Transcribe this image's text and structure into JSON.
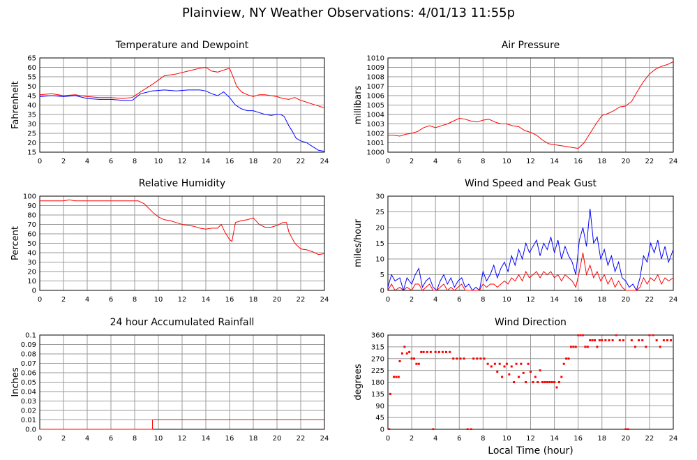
{
  "title": "Plainview, NY Weather Observations: 4/01/13 11:55p",
  "x_axis_label": "Local Time (hour)",
  "colors": {
    "red": "#ff0000",
    "blue": "#0000ff",
    "grid": "#9a9a9a"
  },
  "chart_data": [
    {
      "type": "line",
      "title": "Temperature and Dewpoint",
      "ylabel": "Fahrenheit",
      "xlim": [
        0,
        24
      ],
      "ylim": [
        15,
        65
      ],
      "x_ticks": [
        "0",
        "2",
        "4",
        "6",
        "8",
        "10",
        "12",
        "14",
        "16",
        "18",
        "20",
        "22",
        "24"
      ],
      "y_ticks": [
        "15",
        "20",
        "25",
        "30",
        "35",
        "40",
        "45",
        "50",
        "55",
        "60",
        "65"
      ],
      "grid": true,
      "series": [
        {
          "color": "#ff0000",
          "x": [
            0,
            1,
            2,
            3,
            4,
            5,
            6,
            7,
            7.8,
            8.5,
            9.5,
            10.5,
            11.5,
            12.5,
            13.5,
            14,
            14.5,
            15,
            15.5,
            16,
            16.3,
            16.6,
            17,
            17.5,
            18,
            18.5,
            19,
            19.5,
            20,
            20.5,
            21,
            21.5,
            22,
            22.5,
            23,
            23.5,
            24
          ],
          "y": [
            45.5,
            46,
            45,
            45.5,
            44.5,
            44,
            44,
            43.5,
            44,
            47,
            51,
            55.5,
            56.5,
            58,
            59.5,
            60,
            58,
            57.5,
            58.5,
            59.5,
            55,
            50,
            47,
            45.5,
            44.5,
            45.5,
            45.5,
            45,
            44.5,
            43.5,
            43,
            44,
            42.5,
            41.5,
            40.5,
            39.5,
            38.5
          ]
        },
        {
          "color": "#0000ff",
          "x": [
            0,
            1,
            2,
            3,
            4,
            5,
            6,
            7,
            7.8,
            8.5,
            9.5,
            10.5,
            11.5,
            12.5,
            13.5,
            14,
            14.5,
            15,
            15.5,
            16,
            16.5,
            17,
            17.5,
            18,
            18.5,
            19,
            19.5,
            20,
            20.3,
            20.6,
            21,
            21.3,
            21.6,
            22,
            22.5,
            23,
            23.5,
            24
          ],
          "y": [
            44.5,
            45,
            44.5,
            45,
            43.5,
            43,
            43,
            42.5,
            42.5,
            46,
            47.5,
            48,
            47.5,
            48,
            48,
            47.5,
            46,
            45,
            47,
            44,
            40,
            38,
            37,
            37,
            36,
            35,
            34.5,
            35,
            35,
            34,
            29,
            26,
            22.5,
            21,
            20,
            18,
            16,
            15.5
          ]
        }
      ]
    },
    {
      "type": "line",
      "title": "Air Pressure",
      "ylabel": "millibars",
      "xlim": [
        0,
        24
      ],
      "ylim": [
        1000,
        1010
      ],
      "x_ticks": [
        "0",
        "2",
        "4",
        "6",
        "8",
        "10",
        "12",
        "14",
        "16",
        "18",
        "20",
        "22",
        "24"
      ],
      "y_ticks": [
        "1000",
        "1001",
        "1002",
        "1003",
        "1004",
        "1005",
        "1006",
        "1007",
        "1008",
        "1009",
        "1010"
      ],
      "grid": true,
      "series": [
        {
          "color": "#ff0000",
          "x": [
            0,
            0.5,
            1,
            1.5,
            2,
            2.5,
            3,
            3.5,
            4,
            4.5,
            5,
            5.5,
            6,
            6.5,
            7,
            7.5,
            8,
            8.5,
            9,
            9.5,
            10,
            10.5,
            11,
            11.5,
            12,
            12.5,
            13,
            13.5,
            14,
            14.5,
            15,
            15.5,
            16,
            16.5,
            17,
            17.5,
            18,
            18.5,
            19,
            19.5,
            20,
            20.5,
            21,
            21.5,
            22,
            22.5,
            23,
            23.5,
            24
          ],
          "y": [
            1001.8,
            1001.8,
            1001.7,
            1001.9,
            1002.0,
            1002.2,
            1002.6,
            1002.8,
            1002.6,
            1002.8,
            1003.0,
            1003.3,
            1003.6,
            1003.5,
            1003.3,
            1003.2,
            1003.4,
            1003.5,
            1003.2,
            1003.0,
            1003.0,
            1002.8,
            1002.7,
            1002.3,
            1002.1,
            1001.8,
            1001.3,
            1000.9,
            1000.8,
            1000.7,
            1000.6,
            1000.5,
            1000.4,
            1001.0,
            1002.0,
            1003.0,
            1003.9,
            1004.1,
            1004.4,
            1004.8,
            1004.9,
            1005.4,
            1006.5,
            1007.5,
            1008.3,
            1008.8,
            1009.1,
            1009.3,
            1009.6
          ]
        }
      ]
    },
    {
      "type": "line",
      "title": "Relative Humidity",
      "ylabel": "Percent",
      "xlim": [
        0,
        24
      ],
      "ylim": [
        0,
        100
      ],
      "x_ticks": [
        "0",
        "2",
        "4",
        "6",
        "8",
        "10",
        "12",
        "14",
        "16",
        "18",
        "20",
        "22",
        "24"
      ],
      "y_ticks": [
        "0",
        "10",
        "20",
        "30",
        "40",
        "50",
        "60",
        "70",
        "80",
        "90",
        "100"
      ],
      "grid": true,
      "series": [
        {
          "color": "#ff0000",
          "x": [
            0,
            1,
            2,
            2.5,
            3,
            4,
            5,
            6,
            7,
            7.8,
            8.3,
            8.8,
            9.2,
            9.6,
            10,
            10.5,
            11,
            11.5,
            12,
            12.5,
            13,
            13.5,
            14,
            14.5,
            15,
            15.3,
            15.6,
            16,
            16.2,
            16.5,
            17,
            17.5,
            18,
            18.5,
            19,
            19.5,
            20,
            20.5,
            20.8,
            21,
            21.5,
            22,
            22.5,
            23,
            23.5,
            24
          ],
          "y": [
            95,
            95,
            95,
            96,
            95,
            95,
            95,
            95,
            95,
            95,
            95,
            92,
            87,
            82,
            78,
            75,
            74,
            72,
            70,
            69,
            68,
            66,
            65,
            66,
            66,
            70,
            62,
            54,
            52,
            72,
            74,
            75,
            77,
            70,
            67,
            67,
            69,
            72,
            72,
            62,
            50,
            44,
            43,
            41,
            38,
            39
          ]
        }
      ]
    },
    {
      "type": "line",
      "title": "Wind Speed and Peak Gust",
      "ylabel": "miles/hour",
      "xlim": [
        0,
        24
      ],
      "ylim": [
        0,
        30
      ],
      "x_ticks": [
        "0",
        "2",
        "4",
        "6",
        "8",
        "10",
        "12",
        "14",
        "16",
        "18",
        "20",
        "22",
        "24"
      ],
      "y_ticks": [
        "0",
        "5",
        "10",
        "15",
        "20",
        "25",
        "30"
      ],
      "grid": true,
      "series": [
        {
          "color": "#0000ff",
          "x": [
            0,
            0.3,
            0.6,
            1,
            1.3,
            1.6,
            2,
            2.3,
            2.6,
            2.9,
            3.2,
            3.5,
            3.8,
            4.1,
            4.4,
            4.7,
            5,
            5.3,
            5.6,
            5.9,
            6.2,
            6.5,
            6.8,
            7.1,
            7.4,
            7.7,
            8,
            8.3,
            8.6,
            8.9,
            9.2,
            9.5,
            9.8,
            10.1,
            10.4,
            10.7,
            11,
            11.3,
            11.6,
            11.9,
            12.2,
            12.5,
            12.8,
            13.1,
            13.4,
            13.7,
            14,
            14.3,
            14.6,
            14.9,
            15.2,
            15.5,
            15.8,
            16.1,
            16.4,
            16.7,
            17,
            17.3,
            17.6,
            17.9,
            18.2,
            18.5,
            18.8,
            19.1,
            19.4,
            19.7,
            20,
            20.3,
            20.6,
            20.9,
            21.2,
            21.5,
            21.8,
            22.1,
            22.4,
            22.7,
            23,
            23.3,
            23.6,
            24
          ],
          "y": [
            1,
            5,
            3,
            4,
            0,
            4,
            2,
            5,
            7,
            1,
            3,
            4,
            1,
            0,
            3,
            5,
            2,
            4,
            1,
            3,
            4,
            1,
            2,
            0,
            1,
            0,
            6,
            3,
            5,
            8,
            4,
            7,
            9,
            6,
            11,
            8,
            13,
            10,
            15,
            12,
            14,
            16,
            11,
            15,
            13,
            17,
            12,
            16,
            10,
            14,
            11,
            9,
            5,
            16,
            20,
            14,
            26,
            15,
            17,
            10,
            13,
            8,
            11,
            6,
            9,
            4,
            3,
            1,
            2,
            0,
            4,
            11,
            9,
            15,
            12,
            16,
            10,
            14,
            9,
            13
          ]
        },
        {
          "color": "#ff0000",
          "x": [
            0,
            0.3,
            0.6,
            1,
            1.3,
            1.6,
            2,
            2.3,
            2.6,
            2.9,
            3.2,
            3.5,
            3.8,
            4.1,
            4.4,
            4.7,
            5,
            5.3,
            5.6,
            5.9,
            6.2,
            6.5,
            6.8,
            7.1,
            7.4,
            7.7,
            8,
            8.3,
            8.6,
            8.9,
            9.2,
            9.5,
            9.8,
            10.1,
            10.4,
            10.7,
            11,
            11.3,
            11.6,
            11.9,
            12.2,
            12.5,
            12.8,
            13.1,
            13.4,
            13.7,
            14,
            14.3,
            14.6,
            14.9,
            15.2,
            15.5,
            15.8,
            16.1,
            16.4,
            16.7,
            17,
            17.3,
            17.6,
            17.9,
            18.2,
            18.5,
            18.8,
            19.1,
            19.4,
            19.7,
            20,
            20.3,
            20.6,
            20.9,
            21.2,
            21.5,
            21.8,
            22.1,
            22.4,
            22.7,
            23,
            23.3,
            23.6,
            24
          ],
          "y": [
            0,
            2,
            0,
            1,
            0,
            1,
            0,
            2,
            2,
            0,
            1,
            2,
            0,
            0,
            1,
            2,
            0,
            1,
            0,
            1,
            2,
            0,
            0,
            0,
            0,
            0,
            2,
            1,
            2,
            2,
            1,
            2,
            3,
            2,
            4,
            3,
            5,
            3,
            6,
            4,
            5,
            6,
            4,
            6,
            5,
            6,
            4,
            5,
            3,
            5,
            4,
            3,
            1,
            6,
            12,
            5,
            8,
            4,
            6,
            3,
            5,
            2,
            4,
            1,
            3,
            1,
            0,
            0,
            0,
            0,
            1,
            4,
            2,
            4,
            3,
            5,
            2,
            4,
            3,
            4
          ]
        }
      ]
    },
    {
      "type": "line",
      "title": "24 hour Accumulated Rainfall",
      "ylabel": "Inches",
      "xlim": [
        0,
        24
      ],
      "ylim": [
        0,
        0.1
      ],
      "x_ticks": [
        "0",
        "2",
        "4",
        "6",
        "8",
        "10",
        "12",
        "14",
        "16",
        "18",
        "20",
        "22",
        "24"
      ],
      "y_ticks": [
        "0.0",
        "0.01",
        "0.02",
        "0.03",
        "0.04",
        "0.05",
        "0.06",
        "0.07",
        "0.08",
        "0.09",
        "0.1"
      ],
      "grid": true,
      "series": [
        {
          "color": "#ff0000",
          "x": [
            0,
            9.5,
            9.5,
            24
          ],
          "y": [
            0,
            0,
            0.01,
            0.01
          ]
        }
      ]
    },
    {
      "type": "scatter",
      "title": "Wind Direction",
      "ylabel": "degrees",
      "xlim": [
        0,
        24
      ],
      "ylim": [
        0,
        360
      ],
      "x_ticks": [
        "0",
        "2",
        "4",
        "6",
        "8",
        "10",
        "12",
        "14",
        "16",
        "18",
        "20",
        "22",
        "24"
      ],
      "y_ticks": [
        "0",
        "45",
        "90",
        "135",
        "180",
        "225",
        "270",
        "315",
        "360"
      ],
      "grid": true,
      "series": [
        {
          "color": "#ff0000",
          "x": [
            0.1,
            0.2,
            0.5,
            0.7,
            0.9,
            1.0,
            1.2,
            1.4,
            1.6,
            1.8,
            2.0,
            2.2,
            2.4,
            2.6,
            2.8,
            3.0,
            3.3,
            3.6,
            3.8,
            4.0,
            4.3,
            4.6,
            4.9,
            5.2,
            5.5,
            5.8,
            6.1,
            6.4,
            6.7,
            7.0,
            7.2,
            7.5,
            7.8,
            8.1,
            8.4,
            8.7,
            9.0,
            9.2,
            9.4,
            9.6,
            9.8,
            10.0,
            10.2,
            10.4,
            10.6,
            10.8,
            11.0,
            11.2,
            11.4,
            11.6,
            11.8,
            12.0,
            12.2,
            12.4,
            12.6,
            12.8,
            13.0,
            13.2,
            13.4,
            13.6,
            13.8,
            14.0,
            14.2,
            14.4,
            14.6,
            14.8,
            15.0,
            15.2,
            15.4,
            15.6,
            15.8,
            16.0,
            16.2,
            16.4,
            16.6,
            16.8,
            17.0,
            17.2,
            17.4,
            17.6,
            17.8,
            18.0,
            18.3,
            18.6,
            18.9,
            19.2,
            19.5,
            19.8,
            20.0,
            20.2,
            20.5,
            20.8,
            21.1,
            21.4,
            21.7,
            22.0,
            22.3,
            22.6,
            22.9,
            23.2,
            23.5,
            23.8
          ],
          "y": [
            0,
            135,
            200,
            200,
            200,
            260,
            290,
            315,
            290,
            295,
            270,
            270,
            250,
            250,
            295,
            295,
            295,
            295,
            0,
            295,
            295,
            295,
            295,
            295,
            270,
            270,
            270,
            270,
            0,
            0,
            270,
            270,
            270,
            270,
            250,
            240,
            250,
            220,
            250,
            200,
            240,
            250,
            210,
            240,
            180,
            250,
            200,
            250,
            215,
            180,
            250,
            220,
            180,
            200,
            180,
            225,
            180,
            180,
            180,
            180,
            180,
            180,
            160,
            180,
            200,
            250,
            270,
            270,
            315,
            315,
            315,
            360,
            360,
            360,
            315,
            315,
            340,
            340,
            340,
            315,
            340,
            340,
            340,
            340,
            340,
            360,
            340,
            340,
            0,
            0,
            340,
            315,
            340,
            340,
            315,
            360,
            360,
            340,
            315,
            340,
            340,
            340
          ]
        }
      ]
    }
  ]
}
